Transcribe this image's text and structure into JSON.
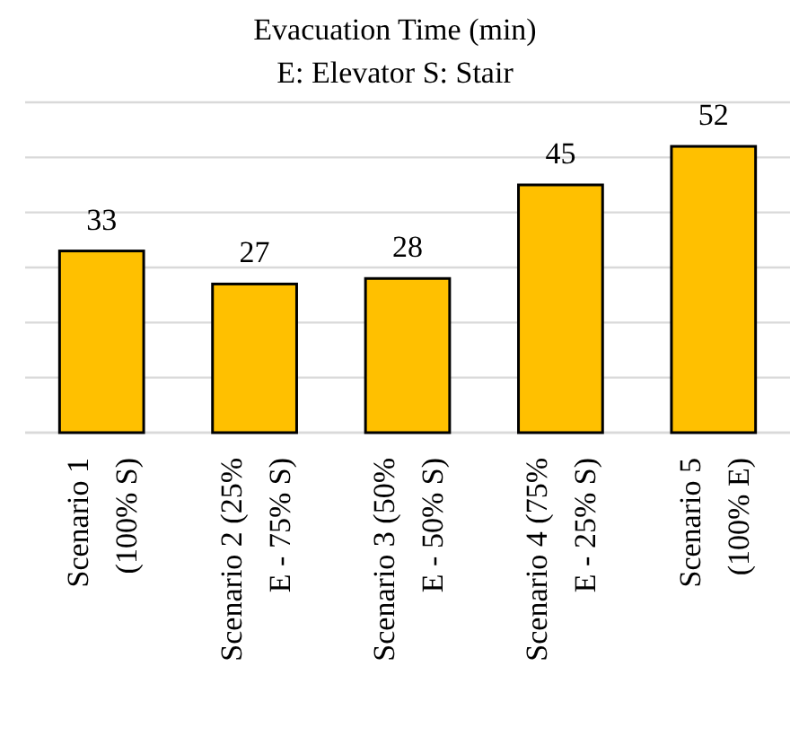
{
  "chart_data": {
    "type": "bar",
    "title": "Evacuation Time (min)",
    "subtitle": "E: Elevator S: Stair",
    "categories": [
      "Scenario 1 (100% S)",
      "Scenario 2 (25% E - 75% S)",
      "Scenario 3 (50% E - 50% S)",
      "Scenario 4 (75% E - 25% S)",
      "Scenario 5 (100% E)"
    ],
    "values": [
      33,
      27,
      28,
      45,
      52
    ],
    "color": "#ffc000",
    "data_labels": true,
    "grid": "y",
    "tick_labels": "x",
    "ylim": [
      0,
      60
    ],
    "yticks": [
      {
        "value": 0,
        "label": null
      },
      {
        "value": 10,
        "label": null
      },
      {
        "value": 20,
        "label": null
      },
      {
        "value": 30,
        "label": null
      },
      {
        "value": 40,
        "label": null
      },
      {
        "value": 50,
        "label": null
      },
      {
        "value": 60,
        "label": null
      }
    ]
  }
}
